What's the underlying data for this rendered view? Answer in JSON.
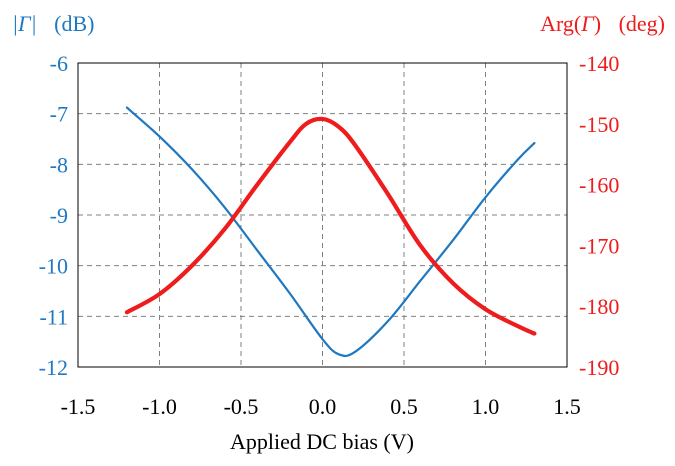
{
  "colors": {
    "left_series": "#1f78c1",
    "right_series": "#ee1c1c",
    "text": "#000000",
    "grid": "#808080"
  },
  "chart_data": {
    "type": "line",
    "xlabel": "Applied DC bias (V)",
    "ylabel_left": {
      "symbol": "|Γ|",
      "unit": "(dB)"
    },
    "ylabel_right": {
      "prefix": "Arg(",
      "symbol": "Γ",
      "suffix": ")",
      "unit": "(deg)"
    },
    "xlim": [
      -1.5,
      1.5
    ],
    "xticks": [
      "-1.5",
      "-1.0",
      "-0.5",
      "0.0",
      "0.5",
      "1.0",
      "1.5"
    ],
    "ylim_left": [
      -12,
      -6
    ],
    "yticks_left": [
      "-6",
      "-7",
      "-8",
      "-9",
      "-10",
      "-11",
      "-12"
    ],
    "ylim_right": [
      -190,
      -140
    ],
    "yticks_right": [
      "-140",
      "-150",
      "-160",
      "-170",
      "-180",
      "-190"
    ],
    "grid": true,
    "series": [
      {
        "axis": "left",
        "x": [
          -1.2,
          -1.0,
          -0.8,
          -0.6,
          -0.4,
          -0.2,
          0.0,
          0.1,
          0.2,
          0.4,
          0.6,
          0.8,
          1.0,
          1.2,
          1.3
        ],
        "values": [
          -6.88,
          -7.45,
          -8.1,
          -8.85,
          -9.7,
          -10.55,
          -11.45,
          -11.75,
          -11.7,
          -11.1,
          -10.3,
          -9.5,
          -8.65,
          -7.9,
          -7.58
        ]
      },
      {
        "axis": "right",
        "x": [
          -1.2,
          -1.0,
          -0.8,
          -0.6,
          -0.4,
          -0.2,
          -0.1,
          0.0,
          0.1,
          0.2,
          0.4,
          0.6,
          0.8,
          1.0,
          1.2,
          1.3
        ],
        "values": [
          -181.0,
          -178.0,
          -173.3,
          -167.3,
          -160.0,
          -153.0,
          -150.0,
          -149.2,
          -150.5,
          -153.5,
          -161.5,
          -170.0,
          -176.2,
          -180.5,
          -183.3,
          -184.5
        ]
      }
    ]
  }
}
